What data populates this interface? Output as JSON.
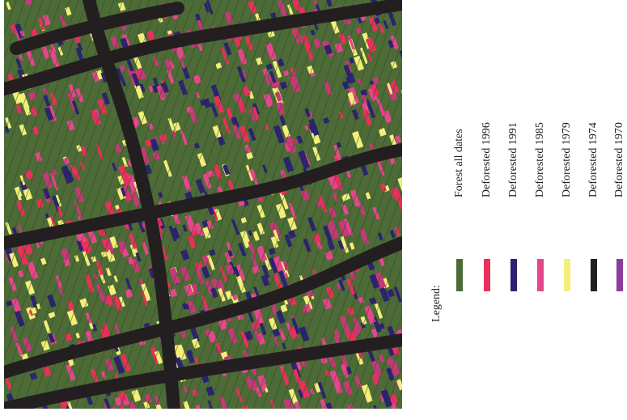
{
  "legend": {
    "title": "Legend:",
    "items": [
      {
        "label": "Forest all dates",
        "color": "#4d6b37"
      },
      {
        "label": "Deforested 1996",
        "color": "#e8305a"
      },
      {
        "label": "Deforested 1991",
        "color": "#2b2272"
      },
      {
        "label": "Deforested 1985",
        "color": "#e5468c"
      },
      {
        "label": "Deforested 1979",
        "color": "#f4ef78"
      },
      {
        "label": "Deforested 1974",
        "color": "#231f20"
      },
      {
        "label": "Deforested 1970",
        "color": "#8d3c9c"
      }
    ]
  }
}
